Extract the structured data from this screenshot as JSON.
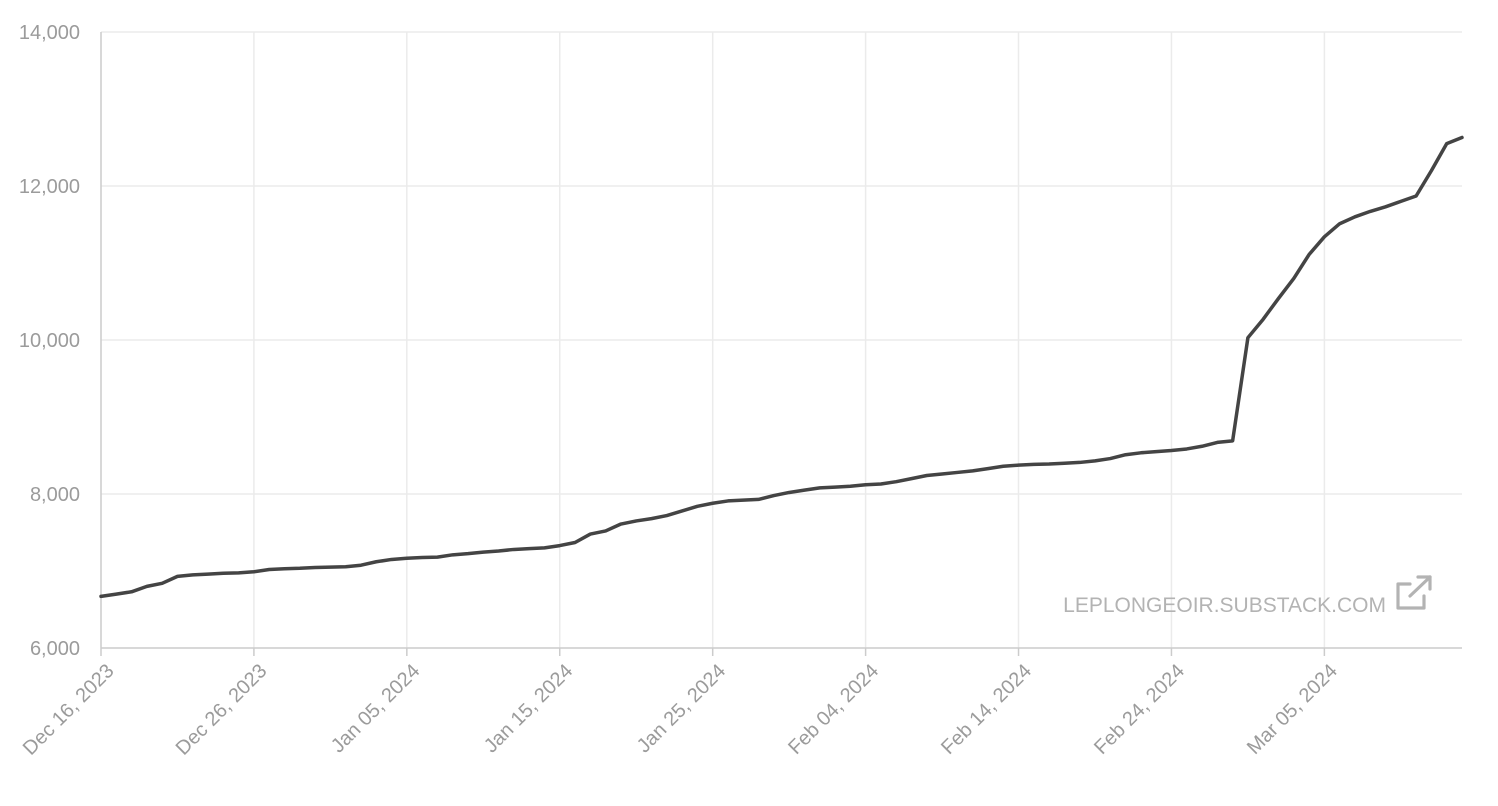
{
  "chart_data": {
    "type": "line",
    "title": "",
    "xlabel": "",
    "ylabel": "",
    "x_axis_type": "date",
    "xlim": [
      "2023-12-16",
      "2024-03-14"
    ],
    "ylim": [
      6000,
      14000
    ],
    "yticks": [
      6000,
      8000,
      10000,
      12000,
      14000
    ],
    "ytick_labels": [
      "6,000",
      "8,000",
      "10,000",
      "12,000",
      "14,000"
    ],
    "xticks": [
      "2023-12-16",
      "2023-12-26",
      "2024-01-05",
      "2024-01-15",
      "2024-01-25",
      "2024-02-04",
      "2024-02-14",
      "2024-02-24",
      "2024-03-05"
    ],
    "xtick_labels": [
      "Dec 16, 2023",
      "Dec 26, 2023",
      "Jan 05, 2024",
      "Jan 15, 2024",
      "Jan 25, 2024",
      "Feb 04, 2024",
      "Feb 14, 2024",
      "Feb 24, 2024",
      "Mar 05, 2024"
    ],
    "grid": true,
    "legend": "none",
    "colors": {
      "line": "#444444",
      "grid": "#ebebeb",
      "axis": "#cccccc",
      "tick_text": "#9b9b9b"
    },
    "watermark": {
      "text": "LEPLONGEOIR.SUBSTACK.COM",
      "icon": "external-link-icon"
    },
    "series": [
      {
        "values": [
          [
            "2023-12-16",
            6670
          ],
          [
            "2023-12-17",
            6700
          ],
          [
            "2023-12-18",
            6730
          ],
          [
            "2023-12-19",
            6800
          ],
          [
            "2023-12-20",
            6840
          ],
          [
            "2023-12-21",
            6930
          ],
          [
            "2023-12-22",
            6950
          ],
          [
            "2023-12-23",
            6960
          ],
          [
            "2023-12-24",
            6970
          ],
          [
            "2023-12-25",
            6975
          ],
          [
            "2023-12-26",
            6990
          ],
          [
            "2023-12-27",
            7020
          ],
          [
            "2023-12-28",
            7030
          ],
          [
            "2023-12-29",
            7035
          ],
          [
            "2023-12-30",
            7045
          ],
          [
            "2023-12-31",
            7050
          ],
          [
            "2024-01-01",
            7055
          ],
          [
            "2024-01-02",
            7075
          ],
          [
            "2024-01-03",
            7120
          ],
          [
            "2024-01-04",
            7150
          ],
          [
            "2024-01-05",
            7165
          ],
          [
            "2024-01-06",
            7175
          ],
          [
            "2024-01-07",
            7180
          ],
          [
            "2024-01-08",
            7210
          ],
          [
            "2024-01-09",
            7225
          ],
          [
            "2024-01-10",
            7245
          ],
          [
            "2024-01-11",
            7260
          ],
          [
            "2024-01-12",
            7280
          ],
          [
            "2024-01-13",
            7290
          ],
          [
            "2024-01-14",
            7300
          ],
          [
            "2024-01-15",
            7330
          ],
          [
            "2024-01-16",
            7370
          ],
          [
            "2024-01-17",
            7480
          ],
          [
            "2024-01-18",
            7520
          ],
          [
            "2024-01-19",
            7610
          ],
          [
            "2024-01-20",
            7650
          ],
          [
            "2024-01-21",
            7680
          ],
          [
            "2024-01-22",
            7720
          ],
          [
            "2024-01-23",
            7780
          ],
          [
            "2024-01-24",
            7840
          ],
          [
            "2024-01-25",
            7880
          ],
          [
            "2024-01-26",
            7910
          ],
          [
            "2024-01-27",
            7920
          ],
          [
            "2024-01-28",
            7930
          ],
          [
            "2024-01-29",
            7980
          ],
          [
            "2024-01-30",
            8020
          ],
          [
            "2024-01-31",
            8050
          ],
          [
            "2024-02-01",
            8080
          ],
          [
            "2024-02-02",
            8090
          ],
          [
            "2024-02-03",
            8100
          ],
          [
            "2024-02-04",
            8120
          ],
          [
            "2024-02-05",
            8130
          ],
          [
            "2024-02-06",
            8160
          ],
          [
            "2024-02-07",
            8200
          ],
          [
            "2024-02-08",
            8240
          ],
          [
            "2024-02-09",
            8260
          ],
          [
            "2024-02-10",
            8280
          ],
          [
            "2024-02-11",
            8300
          ],
          [
            "2024-02-12",
            8330
          ],
          [
            "2024-02-13",
            8360
          ],
          [
            "2024-02-14",
            8375
          ],
          [
            "2024-02-15",
            8385
          ],
          [
            "2024-02-16",
            8390
          ],
          [
            "2024-02-17",
            8400
          ],
          [
            "2024-02-18",
            8410
          ],
          [
            "2024-02-19",
            8430
          ],
          [
            "2024-02-20",
            8460
          ],
          [
            "2024-02-21",
            8510
          ],
          [
            "2024-02-22",
            8535
          ],
          [
            "2024-02-23",
            8550
          ],
          [
            "2024-02-24",
            8565
          ],
          [
            "2024-02-25",
            8585
          ],
          [
            "2024-02-26",
            8620
          ],
          [
            "2024-02-27",
            8670
          ],
          [
            "2024-02-28",
            8690
          ],
          [
            "2024-02-29",
            10030
          ],
          [
            "2024-03-01",
            10270
          ],
          [
            "2024-03-02",
            10540
          ],
          [
            "2024-03-03",
            10800
          ],
          [
            "2024-03-04",
            11110
          ],
          [
            "2024-03-05",
            11340
          ],
          [
            "2024-03-06",
            11510
          ],
          [
            "2024-03-07",
            11600
          ],
          [
            "2024-03-08",
            11670
          ],
          [
            "2024-03-09",
            11730
          ],
          [
            "2024-03-10",
            11800
          ],
          [
            "2024-03-11",
            11870
          ],
          [
            "2024-03-12",
            12200
          ],
          [
            "2024-03-13",
            12550
          ],
          [
            "2024-03-14",
            12630
          ]
        ]
      }
    ]
  }
}
